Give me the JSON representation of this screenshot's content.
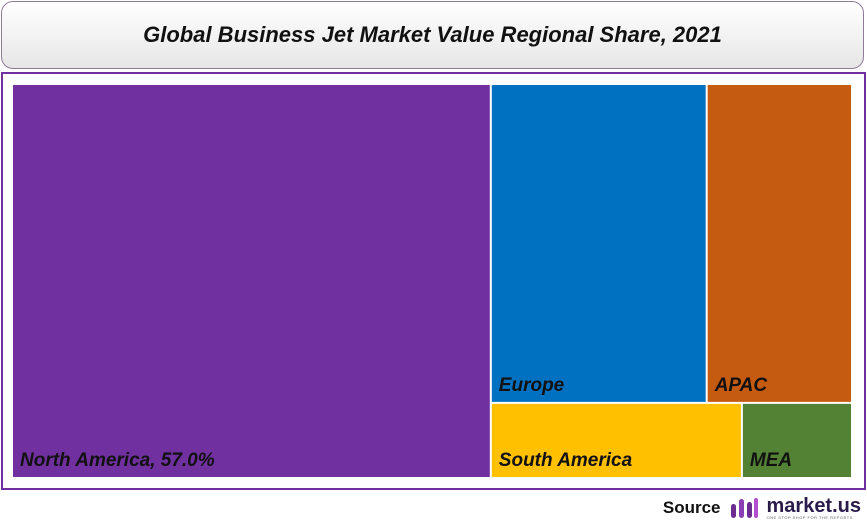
{
  "chart_data": {
    "type": "treemap",
    "title": "Global Business Jet Market Value Regional Share, 2021",
    "categories": [
      "North America, 57.0%",
      "Europe",
      "APAC",
      "South America",
      "MEA"
    ],
    "values": [
      57.0,
      20.8,
      14.0,
      5.7,
      2.5
    ],
    "colors": [
      "#7030a0",
      "#0070c0",
      "#c55a11",
      "#ffc000",
      "#548235"
    ]
  },
  "source": {
    "label": "Source",
    "brand": "market.us",
    "tagline": "ONE STOP SHOP FOR THE REPORTS"
  }
}
